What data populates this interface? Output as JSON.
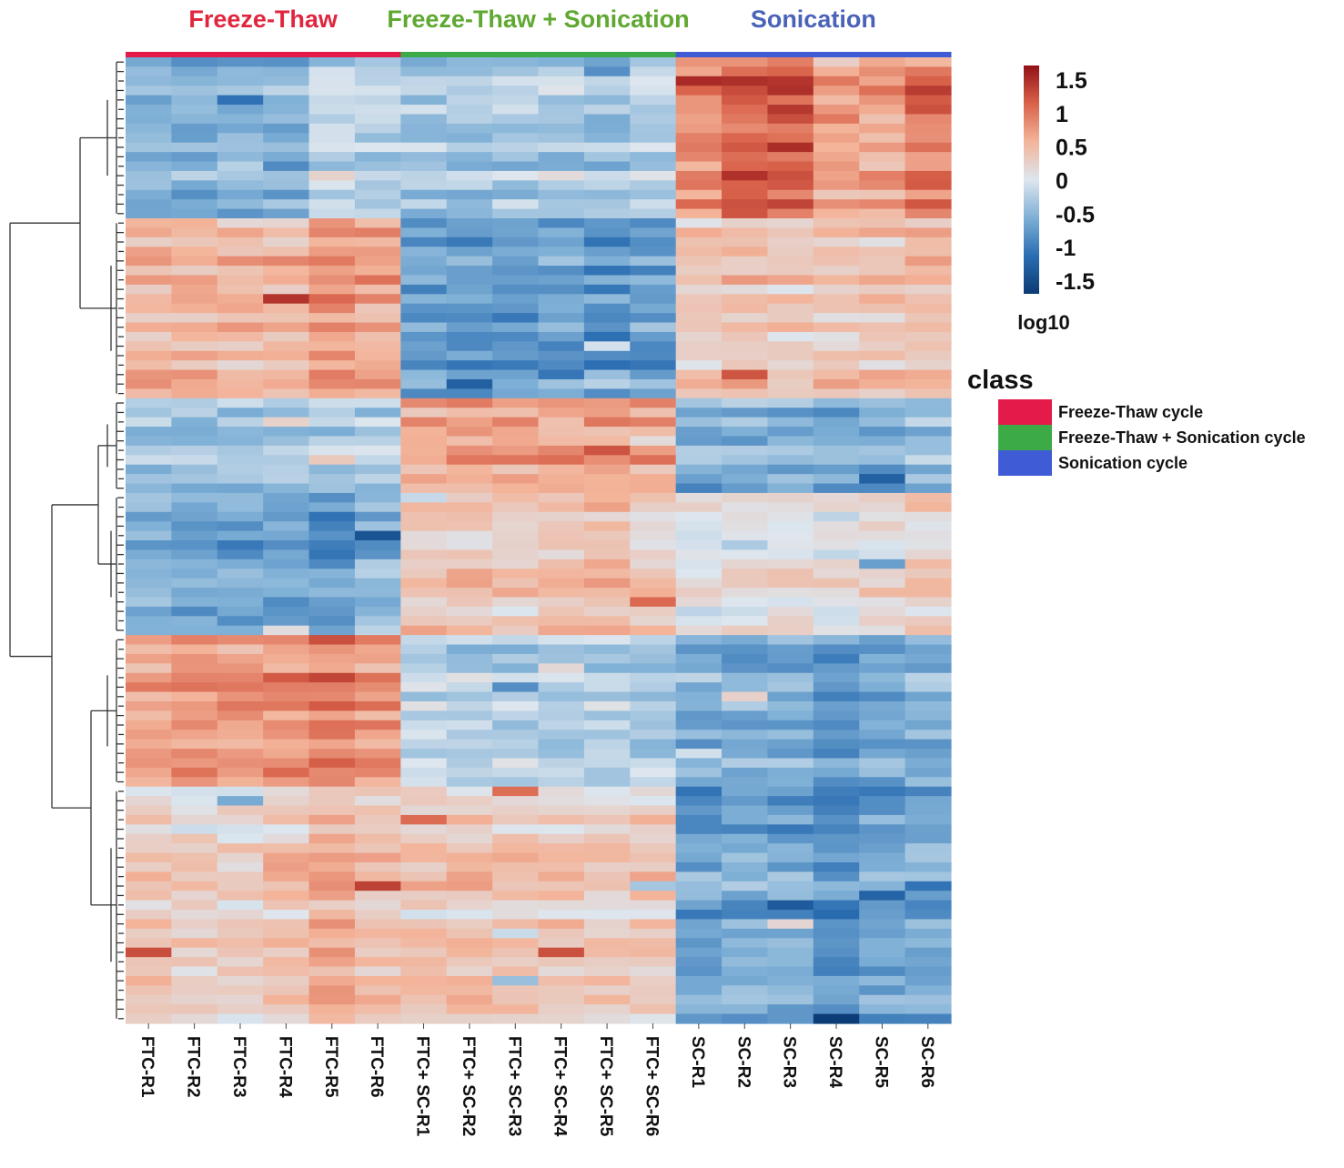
{
  "chart_data": {
    "type": "heatmap",
    "title": "",
    "group_titles": [
      {
        "name": "Freeze-Thaw",
        "color": "#e0263f"
      },
      {
        "name": "Freeze-Thaw + Sonication",
        "color": "#5fa831"
      },
      {
        "name": "Sonication",
        "color": "#4a63b8"
      }
    ],
    "columns": [
      "FTC-R1",
      "FTC-R2",
      "FTC-R3",
      "FTC-R4",
      "FTC-R5",
      "FTC-R6",
      "FTC+ SC-R1",
      "FTC+ SC-R2",
      "FTC+ SC-R3",
      "FTC+ SC-R4",
      "FTC+ SC-R5",
      "FTC+ SC-R6",
      "SC-R1",
      "SC-R2",
      "SC-R3",
      "SC-R4",
      "SC-R5",
      "SC-R6"
    ],
    "column_class": [
      0,
      0,
      0,
      0,
      0,
      0,
      1,
      1,
      1,
      1,
      1,
      1,
      2,
      2,
      2,
      2,
      2,
      2
    ],
    "clusters": [
      {
        "rows": 17,
        "means": [
          -0.45,
          -0.45,
          -0.45,
          -0.45,
          -0.1,
          -0.2,
          -0.3,
          -0.3,
          -0.25,
          -0.25,
          -0.3,
          -0.2,
          0.75,
          1.0,
          1.05,
          0.55,
          0.6,
          0.9
        ]
      },
      {
        "rows": 19,
        "means": [
          0.45,
          0.5,
          0.4,
          0.45,
          0.65,
          0.6,
          -0.65,
          -0.65,
          -0.65,
          -0.65,
          -0.7,
          -0.65,
          0.3,
          0.35,
          0.25,
          0.3,
          0.3,
          0.35
        ]
      },
      {
        "rows": 10,
        "means": [
          -0.25,
          -0.25,
          -0.25,
          -0.25,
          -0.25,
          -0.25,
          0.55,
          0.65,
          0.6,
          0.65,
          0.6,
          0.6,
          -0.45,
          -0.45,
          -0.45,
          -0.55,
          -0.5,
          -0.35
        ]
      },
      {
        "rows": 15,
        "means": [
          -0.45,
          -0.6,
          -0.6,
          -0.6,
          -0.75,
          -0.45,
          0.3,
          0.3,
          0.25,
          0.35,
          0.35,
          0.25,
          0.0,
          0.05,
          0.1,
          0.05,
          0.1,
          0.2
        ]
      },
      {
        "rows": 16,
        "means": [
          0.65,
          0.7,
          0.7,
          0.75,
          0.85,
          0.65,
          -0.2,
          -0.2,
          -0.2,
          -0.2,
          -0.2,
          -0.2,
          -0.5,
          -0.5,
          -0.5,
          -0.6,
          -0.55,
          -0.45
        ]
      },
      {
        "rows": 25,
        "means": [
          0.3,
          0.25,
          0.2,
          0.3,
          0.5,
          0.35,
          0.3,
          0.3,
          0.3,
          0.3,
          0.25,
          0.3,
          -0.6,
          -0.55,
          -0.6,
          -0.75,
          -0.6,
          -0.55
        ]
      }
    ],
    "colorbar": {
      "range": [
        -1.5,
        1.5
      ],
      "ticks": [
        "1.5",
        "1",
        "0.5",
        "0",
        "-0.5",
        "-1",
        "-1.5"
      ],
      "tick_values": [
        1.5,
        1,
        0.5,
        0,
        -0.5,
        -1,
        -1.5
      ],
      "label": "log10",
      "colors": [
        "#0b3b73",
        "#2a6db2",
        "#7fb0d6",
        "#dde6ee",
        "#f3b49a",
        "#d9624a",
        "#931015"
      ]
    },
    "legend": {
      "title": "class",
      "entries": [
        {
          "label": "Freeze-Thaw cycle",
          "color": "#e41a4a"
        },
        {
          "label": "Freeze-Thaw + Sonication cycle",
          "color": "#3daa48"
        },
        {
          "label": "Sonication cycle",
          "color": "#3f5bd6"
        }
      ]
    },
    "grid": false
  }
}
